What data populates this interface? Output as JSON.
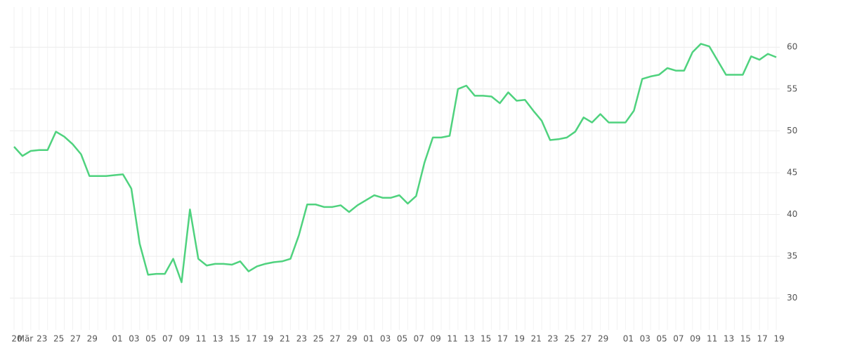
{
  "chart_data": {
    "type": "line",
    "categories": [
      "20",
      "Mär",
      null,
      "23",
      null,
      "25",
      null,
      "27",
      null,
      "29",
      null,
      null,
      "01",
      null,
      "03",
      null,
      "05",
      null,
      "07",
      null,
      "09",
      null,
      "11",
      null,
      "13",
      null,
      "15",
      null,
      "17",
      null,
      "19",
      null,
      "21",
      null,
      "23",
      null,
      "25",
      null,
      "27",
      null,
      "29",
      null,
      "01",
      null,
      "03",
      null,
      "05",
      null,
      "07",
      null,
      "09",
      null,
      "11",
      null,
      "13",
      null,
      "15",
      null,
      "17",
      null,
      "19",
      null,
      "21",
      null,
      "23",
      null,
      "25",
      null,
      "27",
      null,
      "29",
      null,
      null,
      "01",
      null,
      "03",
      null,
      "05",
      null,
      "07",
      null,
      "09",
      null,
      "11",
      null,
      "13",
      null,
      "15",
      null,
      "17",
      null,
      "19"
    ],
    "series": [
      {
        "color": "#4fd27e",
        "values": [
          48.1,
          47.0,
          47.6,
          47.7,
          47.7,
          49.9,
          49.3,
          48.4,
          47.2,
          44.6,
          44.6,
          44.6,
          44.7,
          44.8,
          43.1,
          36.5,
          32.8,
          32.9,
          32.9,
          34.7,
          31.9,
          40.6,
          34.7,
          33.9,
          34.1,
          34.1,
          34.0,
          34.4,
          33.2,
          33.8,
          34.1,
          34.3,
          34.4,
          34.7,
          37.5,
          41.2,
          41.2,
          40.9,
          40.9,
          41.1,
          40.3,
          41.1,
          41.7,
          42.3,
          42.0,
          42.0,
          42.3,
          41.3,
          42.2,
          46.2,
          49.2,
          49.2,
          49.4,
          55.0,
          55.4,
          54.2,
          54.2,
          54.1,
          53.3,
          54.6,
          53.6,
          53.7,
          52.4,
          51.2,
          48.9,
          49.0,
          49.2,
          49.9,
          51.6,
          51.0,
          52.0,
          51.0,
          51.0,
          51.0,
          52.4,
          56.2,
          56.5,
          56.7,
          57.5,
          57.2,
          57.2,
          59.4,
          60.4,
          60.1,
          58.4,
          56.7,
          56.7,
          56.7,
          58.9,
          58.5,
          59.2,
          58.8
        ]
      }
    ],
    "ylim": [
      26.2,
      64.8
    ],
    "yticks": [
      30,
      35,
      40,
      45,
      50,
      55,
      60
    ],
    "grid": true
  }
}
